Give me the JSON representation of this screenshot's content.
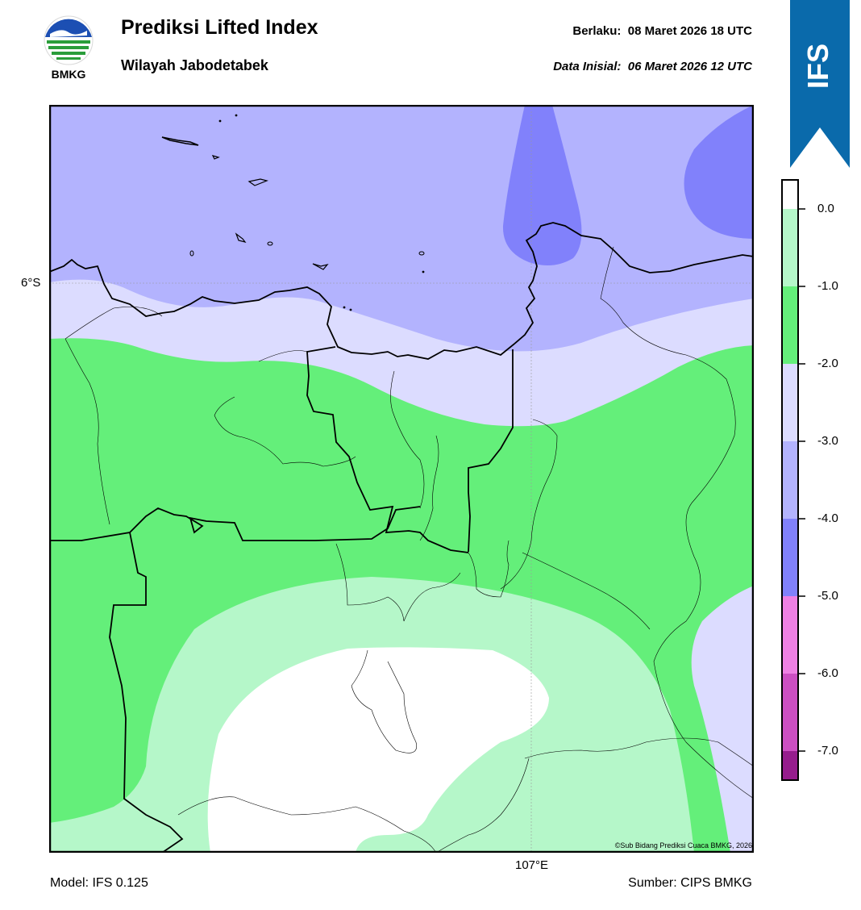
{
  "header": {
    "title": "Prediksi Lifted Index",
    "subtitle": "Wilayah Jabodetabek",
    "valid_label": "Berlaku:",
    "valid_time": "08 Maret 2026 18 UTC",
    "init_label": "Data Inisial:",
    "init_time": "06 Maret 2026 12 UTC"
  },
  "logo": {
    "text": "BMKG",
    "icon": "bmkg-logo-icon"
  },
  "ribbon": {
    "text": "IFS",
    "color": "#0a6aab"
  },
  "map": {
    "lat_label": "6°S",
    "lon_label": "107°E",
    "copyright": "©Sub Bidang Prediksi Cuaca BMKG, 2026"
  },
  "footer": {
    "model": "Model: IFS 0.125",
    "source": "Sumber: CIPS BMKG"
  },
  "colorbar": {
    "labels": [
      "0.0",
      "-1.0",
      "-2.0",
      "-3.0",
      "-4.0",
      "-5.0",
      "-6.0",
      "-7.0"
    ],
    "colors": [
      "#ffffff",
      "#b5f7c9",
      "#64ef7a",
      "#dcdcff",
      "#b3b3fe",
      "#8181fb",
      "#ee80e3",
      "#cc4fc2",
      "#961d8d"
    ]
  }
}
